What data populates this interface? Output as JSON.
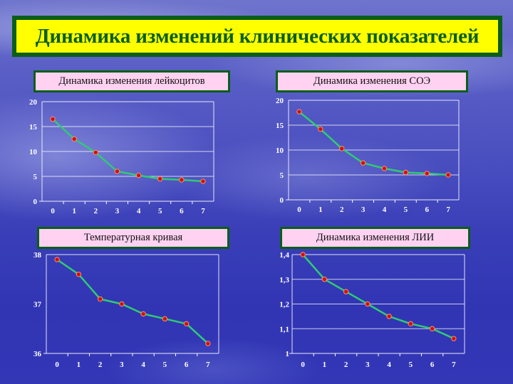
{
  "slide": {
    "title": "Динамика изменений клинических показателей"
  },
  "panels": [
    {
      "label": "Динамика изменения лейкоцитов"
    },
    {
      "label": "Динамика изменения СОЭ"
    },
    {
      "label": "Температурная кривая"
    },
    {
      "label": "Динамика изменения ЛИИ"
    }
  ],
  "colors": {
    "title_bg": "#ffff00",
    "border": "#0b5e16",
    "label_bg": "#ffd2f2",
    "line": "#2ecc71",
    "marker": "#cc1111",
    "axis": "#ffffff"
  },
  "chart_data": [
    {
      "type": "line",
      "title": "Динамика изменения лейкоцитов",
      "x": [
        0,
        1,
        2,
        3,
        4,
        5,
        6,
        7
      ],
      "values": [
        16.5,
        12.5,
        9.8,
        6.0,
        5.2,
        4.5,
        4.3,
        4.0
      ],
      "ylim": [
        0,
        20
      ],
      "yticks": [
        "0",
        "5",
        "10",
        "15",
        "20"
      ],
      "xticks": [
        "0",
        "1",
        "2",
        "3",
        "4",
        "5",
        "6",
        "7"
      ],
      "grid": true,
      "legend": null,
      "xlabel": "",
      "ylabel": ""
    },
    {
      "type": "line",
      "title": "Динамика изменения СОЭ",
      "x": [
        0,
        1,
        2,
        3,
        4,
        5,
        6,
        7
      ],
      "values": [
        17.7,
        14.2,
        10.3,
        7.4,
        6.3,
        5.5,
        5.3,
        5.0
      ],
      "ylim": [
        0,
        20
      ],
      "yticks": [
        "0",
        "5",
        "10",
        "15",
        "20"
      ],
      "xticks": [
        "0",
        "1",
        "2",
        "3",
        "4",
        "5",
        "6",
        "7"
      ],
      "grid": true,
      "legend": null,
      "xlabel": "",
      "ylabel": ""
    },
    {
      "type": "line",
      "title": "Температурная кривая",
      "x": [
        0,
        1,
        2,
        3,
        4,
        5,
        6,
        7
      ],
      "values": [
        37.9,
        37.6,
        37.1,
        37.0,
        36.8,
        36.7,
        36.6,
        36.2
      ],
      "ylim": [
        36,
        38
      ],
      "yticks": [
        "36",
        "37",
        "38"
      ],
      "xticks": [
        "0",
        "1",
        "2",
        "3",
        "4",
        "5",
        "6",
        "7"
      ],
      "grid": false,
      "legend": null,
      "xlabel": "",
      "ylabel": ""
    },
    {
      "type": "line",
      "title": "Динамика изменения ЛИИ",
      "x": [
        0,
        1,
        2,
        3,
        4,
        5,
        6,
        7
      ],
      "values": [
        1.4,
        1.3,
        1.25,
        1.2,
        1.15,
        1.12,
        1.1,
        1.06
      ],
      "ylim": [
        1,
        1.4
      ],
      "yticks": [
        "1",
        "1,1",
        "1,2",
        "1,3",
        "1,4"
      ],
      "xticks": [
        "0",
        "1",
        "2",
        "3",
        "4",
        "5",
        "6",
        "7"
      ],
      "grid": true,
      "legend": null,
      "xlabel": "",
      "ylabel": ""
    }
  ]
}
